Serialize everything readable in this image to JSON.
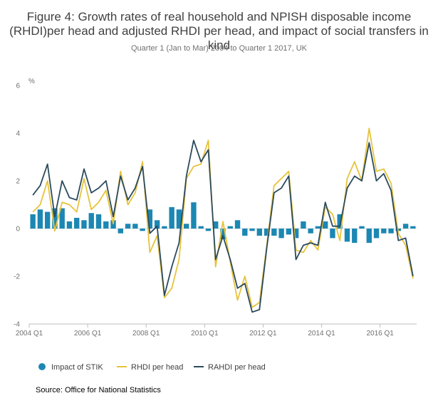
{
  "chart_data": {
    "type": "bar+line",
    "title": "Figure 4: Growth rates of real household and NPISH disposable income (RHDI)per head and adjusted RHDI per head, and impact of social transfers in kind",
    "subtitle": "Quarter 1 (Jan to Mar) 2004 to Quarter 1 2017, UK",
    "ylabel": "%",
    "ylim": [
      -4,
      6
    ],
    "yticks": [
      6,
      4,
      2,
      0,
      -2,
      -4
    ],
    "xticks": [
      {
        "label": "2004 Q1",
        "index": 0
      },
      {
        "label": "2006 Q1",
        "index": 8
      },
      {
        "label": "2008 Q1",
        "index": 16
      },
      {
        "label": "2010 Q1",
        "index": 24
      },
      {
        "label": "2012 Q1",
        "index": 32
      },
      {
        "label": "2014 Q1",
        "index": 40
      },
      {
        "label": "2016 Q1",
        "index": 48
      }
    ],
    "n_quarters": 53,
    "colors": {
      "stik": "#1c87b3",
      "rhdi": "#e7c33d",
      "rahdi": "#2b4a5d",
      "axis": "#bcbcbc"
    },
    "series": [
      {
        "name": "Impact of STIK",
        "kind": "bar",
        "values": [
          0.6,
          0.8,
          0.7,
          0.85,
          0.85,
          0.3,
          0.45,
          0.35,
          0.65,
          0.6,
          0.3,
          0.35,
          -0.2,
          0.2,
          0.2,
          -0.1,
          0.8,
          0.35,
          0.1,
          0.9,
          0.8,
          0.2,
          1.1,
          0.1,
          -0.1,
          0.3,
          -0.45,
          0.1,
          0.35,
          -0.3,
          -0.1,
          -0.3,
          -0.3,
          -0.3,
          -0.4,
          -0.25,
          -0.4,
          0.3,
          -0.2,
          0.1,
          0.3,
          -0.4,
          0.6,
          -0.55,
          -0.6,
          0.1,
          -0.6,
          -0.4,
          -0.2,
          -0.2,
          -0.1,
          0.2,
          0.1
        ]
      },
      {
        "name": "RHDI per head",
        "kind": "line",
        "values": [
          0.7,
          1.0,
          2.0,
          -0.1,
          1.1,
          1.0,
          0.7,
          2.1,
          0.8,
          1.1,
          1.6,
          0.2,
          2.4,
          1.0,
          1.5,
          2.8,
          -1.0,
          -0.3,
          -2.9,
          -2.5,
          -1.3,
          2.1,
          2.6,
          2.7,
          3.7,
          -1.6,
          0.3,
          -1.4,
          -3.0,
          -2.0,
          -3.3,
          -3.1,
          -0.7,
          1.8,
          2.1,
          2.4,
          -0.9,
          -1.0,
          -0.5,
          -0.9,
          0.9,
          0.6,
          -0.5,
          2.1,
          2.8,
          2.0,
          4.2,
          2.4,
          2.5,
          1.9,
          -0.2,
          -0.7,
          -2.1
        ]
      },
      {
        "name": "RAHDI per head",
        "kind": "line",
        "values": [
          1.4,
          1.8,
          2.7,
          0.5,
          2.0,
          1.3,
          1.2,
          2.5,
          1.5,
          1.7,
          2.0,
          0.5,
          2.2,
          1.2,
          1.7,
          2.6,
          -0.2,
          0.1,
          -2.8,
          -1.6,
          -0.6,
          2.2,
          3.7,
          2.8,
          3.3,
          -1.3,
          -0.3,
          -1.3,
          -2.5,
          -2.3,
          -3.5,
          -3.4,
          -0.8,
          1.5,
          1.7,
          2.2,
          -1.3,
          -0.7,
          -0.6,
          -0.7,
          1.1,
          0.1,
          0.1,
          1.7,
          2.2,
          2.0,
          3.6,
          2.0,
          2.3,
          1.6,
          -0.5,
          -0.4,
          -2.0
        ]
      }
    ],
    "legend": {
      "position": "bottom-left"
    }
  },
  "source": "Source: Office for National Statistics"
}
